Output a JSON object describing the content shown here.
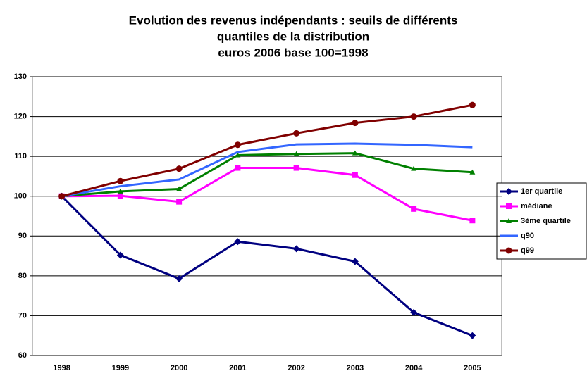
{
  "chart_data": {
    "type": "line",
    "title": [
      "Evolution des revenus indépendants : seuils de différents",
      "quantiles de la distribution",
      "euros 2006 base 100=1998"
    ],
    "categories": [
      "1998",
      "1999",
      "2000",
      "2001",
      "2002",
      "2003",
      "2004",
      "2005"
    ],
    "series": [
      {
        "name": "1er quartile",
        "color": "#000080",
        "marker": "diamond",
        "values": [
          100,
          85.2,
          79.3,
          88.6,
          86.8,
          83.6,
          70.8,
          65.0
        ]
      },
      {
        "name": "médiane",
        "color": "#ff00ff",
        "marker": "square",
        "values": [
          100,
          100.1,
          98.6,
          107.1,
          107.1,
          105.3,
          96.8,
          93.9
        ]
      },
      {
        "name": "3ème quartile",
        "color": "#008000",
        "marker": "triangle",
        "values": [
          100,
          101.2,
          101.8,
          110.3,
          110.6,
          110.8,
          106.9,
          106.0
        ]
      },
      {
        "name": "q90",
        "color": "#3366ff",
        "marker": "none",
        "values": [
          100,
          102.5,
          104.2,
          111.1,
          113.0,
          113.2,
          112.9,
          112.3
        ]
      },
      {
        "name": "q99",
        "color": "#800000",
        "marker": "circle",
        "values": [
          100,
          103.8,
          106.9,
          112.9,
          115.8,
          118.4,
          120.0,
          122.9
        ]
      }
    ],
    "ylim": [
      60,
      130
    ],
    "yticks": [
      60,
      70,
      80,
      90,
      100,
      110,
      120,
      130
    ],
    "grid": true,
    "legend": "right"
  }
}
